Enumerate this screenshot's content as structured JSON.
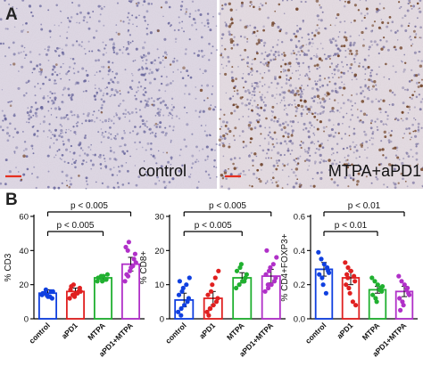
{
  "panel_a": {
    "letter": "A",
    "images": [
      {
        "label": "control",
        "tissue_color": "#ded7e4",
        "nuclei_color": "#5c5a96",
        "stain_color": "#7a4a2e",
        "stain_density": 0.02,
        "scalebar_color": "#e53020"
      },
      {
        "label": "MTPA+aPD1",
        "tissue_color": "#e4dbe2",
        "nuclei_color": "#6a6498",
        "stain_color": "#6b3a1c",
        "stain_density": 0.22,
        "scalebar_color": "#e53020"
      }
    ]
  },
  "panel_b": {
    "letter": "B"
  },
  "chart_data": [
    {
      "type": "bar",
      "ylabel": "% CD3",
      "ylim": [
        0,
        60
      ],
      "yticks": [
        0,
        20,
        40,
        60
      ],
      "categories": [
        "control",
        "aPD1",
        "MTPA",
        "aPD1+MTPA"
      ],
      "colors": [
        "#1040e0",
        "#e02020",
        "#20b030",
        "#b030c8"
      ],
      "values": [
        15,
        16,
        24,
        32
      ],
      "errors": [
        2,
        2,
        1.5,
        4
      ],
      "points": [
        [
          14,
          15,
          13,
          16,
          12,
          15,
          17,
          14,
          13,
          16
        ],
        [
          12,
          14,
          15,
          16,
          18,
          17,
          20,
          13,
          15,
          16,
          19
        ],
        [
          22,
          24,
          25,
          23,
          26,
          24,
          25,
          22,
          23
        ],
        [
          22,
          25,
          30,
          35,
          38,
          42,
          45,
          28,
          31,
          33,
          26,
          40
        ]
      ],
      "comparisons": [
        {
          "from": 0,
          "to": 3,
          "label": "p < 0.005"
        },
        {
          "from": 0,
          "to": 2,
          "label": "p < 0.005"
        }
      ]
    },
    {
      "type": "bar",
      "ylabel": "% CD8+",
      "ylim": [
        0,
        30
      ],
      "yticks": [
        0,
        10,
        20,
        30
      ],
      "categories": [
        "control",
        "aPD1",
        "MTPA",
        "aPD1+MTPA"
      ],
      "colors": [
        "#1040e0",
        "#e02020",
        "#20b030",
        "#b030c8"
      ],
      "values": [
        5.5,
        6,
        12,
        12.5
      ],
      "errors": [
        2,
        2,
        1.5,
        2
      ],
      "points": [
        [
          2,
          3,
          4,
          5,
          6,
          7,
          8,
          9,
          10,
          12,
          11,
          1
        ],
        [
          2,
          3,
          4,
          5,
          6,
          7,
          8,
          10,
          12,
          14,
          1,
          3
        ],
        [
          9,
          10,
          11,
          12,
          13,
          14,
          15,
          16,
          11
        ],
        [
          8,
          9,
          10,
          11,
          12,
          13,
          14,
          15,
          16,
          18,
          20,
          10
        ]
      ],
      "comparisons": [
        {
          "from": 0,
          "to": 3,
          "label": "p < 0.005"
        },
        {
          "from": 0,
          "to": 2,
          "label": "p < 0.005"
        }
      ]
    },
    {
      "type": "bar",
      "ylabel": "% CD4+FOXP3+",
      "ylim": [
        0,
        0.6
      ],
      "yticks": [
        0.0,
        0.2,
        0.4,
        0.6
      ],
      "categories": [
        "control",
        "aPD1",
        "MTPA",
        "aPD1+MTPA"
      ],
      "colors": [
        "#1040e0",
        "#e02020",
        "#20b030",
        "#b030c8"
      ],
      "values": [
        0.29,
        0.24,
        0.17,
        0.16
      ],
      "errors": [
        0.04,
        0.04,
        0.02,
        0.03
      ],
      "points": [
        [
          0.39,
          0.35,
          0.32,
          0.3,
          0.28,
          0.26,
          0.24,
          0.2,
          0.15,
          0.27
        ],
        [
          0.33,
          0.3,
          0.28,
          0.25,
          0.22,
          0.2,
          0.18,
          0.15,
          0.1,
          0.08,
          0.26,
          0.24
        ],
        [
          0.24,
          0.22,
          0.2,
          0.18,
          0.16,
          0.14,
          0.12,
          0.1,
          0.17,
          0.19
        ],
        [
          0.25,
          0.22,
          0.2,
          0.18,
          0.15,
          0.12,
          0.1,
          0.08,
          0.17,
          0.14,
          0.05
        ]
      ],
      "comparisons": [
        {
          "from": 0,
          "to": 3,
          "label": "p < 0.01"
        },
        {
          "from": 0,
          "to": 2,
          "label": "p < 0.01"
        }
      ]
    }
  ]
}
